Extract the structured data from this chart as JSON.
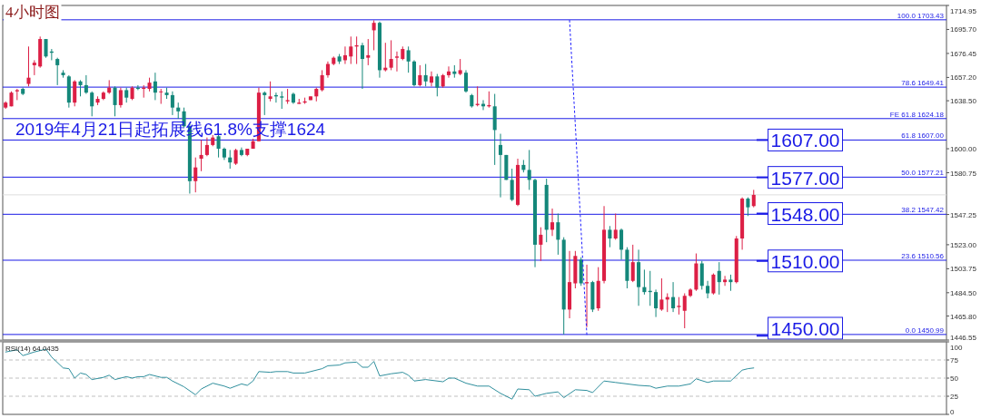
{
  "chart_data": [
    {
      "type": "candlestick",
      "title": "4小时图",
      "categories": [
        null,
        null,
        null,
        null,
        null,
        null,
        null,
        null,
        null,
        null,
        null,
        null,
        null,
        null,
        null,
        null,
        null,
        null,
        null,
        null,
        null,
        null,
        null,
        null,
        null,
        null,
        null,
        null,
        null,
        null,
        null,
        null,
        null,
        null,
        null,
        null,
        null,
        null,
        null,
        null,
        null,
        null,
        null,
        null,
        null,
        null,
        null,
        null,
        null,
        null,
        null,
        null,
        null,
        null,
        null,
        null,
        null,
        null,
        null,
        null,
        null,
        null,
        null,
        null,
        null,
        null,
        null,
        null,
        null,
        null,
        null,
        null,
        null,
        null,
        null,
        null,
        null,
        null,
        null,
        null,
        null,
        null,
        null,
        null,
        null,
        null,
        null,
        null,
        null,
        null,
        null,
        null,
        null,
        null,
        null,
        null,
        null,
        null,
        null,
        null,
        null,
        null,
        null,
        null,
        null,
        null,
        null,
        null,
        null,
        null,
        null,
        null,
        null,
        null,
        null,
        null,
        null,
        null,
        null,
        null,
        null,
        null,
        null,
        null,
        null,
        null,
        null,
        null,
        null,
        null,
        null,
        null,
        null,
        null,
        null,
        null,
        null,
        null,
        null,
        null,
        null,
        null,
        null,
        null,
        null,
        null,
        null,
        null,
        null,
        null,
        null,
        null,
        null,
        null,
        null,
        null,
        null,
        null,
        null,
        null,
        null,
        null,
        null,
        null
      ],
      "ohlc": [
        [
          1633,
          1638,
          1632,
          1637
        ],
        [
          1634,
          1646,
          1634,
          1645
        ],
        [
          1646,
          1648,
          1639,
          1647
        ],
        [
          1648,
          1649,
          1643,
          1644
        ],
        [
          1652,
          1682,
          1650,
          1657
        ],
        [
          1667,
          1671,
          1659,
          1669
        ],
        [
          1666,
          1690,
          1665,
          1688
        ],
        [
          1688,
          1688,
          1673,
          1674
        ],
        [
          1678,
          1680,
          1671,
          1677
        ],
        [
          1672,
          1673,
          1651,
          1667
        ],
        [
          1661,
          1663,
          1657,
          1659
        ],
        [
          1658,
          1659,
          1633,
          1637
        ],
        [
          1637,
          1655,
          1634,
          1654
        ],
        [
          1654,
          1655,
          1642,
          1651
        ],
        [
          1651,
          1659,
          1644,
          1645
        ],
        [
          1645,
          1646,
          1626,
          1634
        ],
        [
          1637,
          1642,
          1635,
          1640
        ],
        [
          1640,
          1646,
          1639,
          1645
        ],
        [
          1645,
          1655,
          1644,
          1649
        ],
        [
          1649,
          1650,
          1626,
          1635
        ],
        [
          1635,
          1649,
          1633,
          1647
        ],
        [
          1647,
          1649,
          1637,
          1641
        ],
        [
          1640,
          1650,
          1639,
          1649
        ],
        [
          1649,
          1651,
          1647,
          1648
        ],
        [
          1648,
          1651,
          1641,
          1649
        ],
        [
          1648,
          1657,
          1646,
          1653
        ],
        [
          1654,
          1661,
          1639,
          1645
        ],
        [
          1646,
          1648,
          1636,
          1646
        ],
        [
          1645,
          1649,
          1640,
          1643
        ],
        [
          1643,
          1646,
          1627,
          1633
        ],
        [
          1633,
          1637,
          1624,
          1630
        ],
        [
          1630,
          1633,
          1617,
          1618
        ],
        [
          1618,
          1620,
          1564,
          1574
        ],
        [
          1574,
          1593,
          1565,
          1585
        ],
        [
          1592,
          1607,
          1582,
          1595
        ],
        [
          1595,
          1609,
          1594,
          1603
        ],
        [
          1603,
          1611,
          1602,
          1609
        ],
        [
          1610,
          1612,
          1593,
          1600
        ],
        [
          1600,
          1601,
          1591,
          1593
        ],
        [
          1593,
          1599,
          1584,
          1589
        ],
        [
          1588,
          1600,
          1587,
          1599
        ],
        [
          1599,
          1601,
          1594,
          1595
        ],
        [
          1595,
          1600,
          1594,
          1600
        ],
        [
          1600,
          1608,
          1600,
          1606
        ],
        [
          1606,
          1649,
          1606,
          1645
        ],
        [
          1645,
          1646,
          1627,
          1643
        ],
        [
          1640,
          1654,
          1638,
          1642
        ],
        [
          1643,
          1645,
          1637,
          1642
        ],
        [
          1642,
          1646,
          1632,
          1641
        ],
        [
          1638,
          1648,
          1636,
          1639
        ],
        [
          1644,
          1645,
          1636,
          1637
        ],
        [
          1636,
          1640,
          1636,
          1637
        ],
        [
          1637,
          1641,
          1636,
          1638
        ],
        [
          1639,
          1642,
          1639,
          1642
        ],
        [
          1642,
          1649,
          1638,
          1648
        ],
        [
          1647,
          1663,
          1646,
          1659
        ],
        [
          1659,
          1670,
          1657,
          1668
        ],
        [
          1668,
          1674,
          1667,
          1673
        ],
        [
          1674,
          1676,
          1668,
          1670
        ],
        [
          1671,
          1682,
          1668,
          1675
        ],
        [
          1674,
          1690,
          1668,
          1682
        ],
        [
          1682,
          1690,
          1668,
          1683
        ],
        [
          1683,
          1685,
          1648,
          1672
        ],
        [
          1673,
          1688,
          1667,
          1675
        ],
        [
          1695,
          1703,
          1679,
          1701
        ],
        [
          1701,
          1702,
          1657,
          1663
        ],
        [
          1663,
          1685,
          1662,
          1665
        ],
        [
          1665,
          1687,
          1663,
          1672
        ],
        [
          1673,
          1678,
          1662,
          1674
        ],
        [
          1672,
          1682,
          1671,
          1680
        ],
        [
          1679,
          1682,
          1661,
          1670
        ],
        [
          1670,
          1671,
          1650,
          1651
        ],
        [
          1651,
          1667,
          1650,
          1659
        ],
        [
          1659,
          1668,
          1650,
          1654
        ],
        [
          1653,
          1662,
          1650,
          1658
        ],
        [
          1658,
          1660,
          1642,
          1649
        ],
        [
          1650,
          1660,
          1649,
          1659
        ],
        [
          1659,
          1666,
          1657,
          1662
        ],
        [
          1662,
          1667,
          1657,
          1660
        ],
        [
          1660,
          1672,
          1659,
          1663
        ],
        [
          1661,
          1663,
          1645,
          1646
        ],
        [
          1643,
          1644,
          1633,
          1634
        ],
        [
          1635,
          1650,
          1634,
          1636
        ],
        [
          1636,
          1639,
          1631,
          1634
        ],
        [
          1634,
          1646,
          1633,
          1635
        ],
        [
          1634,
          1644,
          1587,
          1615
        ],
        [
          1603,
          1612,
          1561,
          1595
        ],
        [
          1595,
          1595,
          1575,
          1575
        ],
        [
          1575,
          1584,
          1558,
          1559
        ],
        [
          1555,
          1592,
          1554,
          1587
        ],
        [
          1587,
          1591,
          1581,
          1583
        ],
        [
          1583,
          1599,
          1567,
          1575
        ],
        [
          1575,
          1576,
          1505,
          1523
        ],
        [
          1523,
          1537,
          1510,
          1531
        ],
        [
          1571,
          1576,
          1525,
          1535
        ],
        [
          1535,
          1552,
          1530,
          1541
        ],
        [
          1541,
          1548,
          1515,
          1527
        ],
        [
          1527,
          1529,
          1451,
          1471
        ],
        [
          1471,
          1518,
          1464,
          1493
        ],
        [
          1492,
          1518,
          1488,
          1514
        ],
        [
          1511,
          1513,
          1490,
          1492
        ],
        [
          1492,
          1507,
          1457,
          1493
        ],
        [
          1493,
          1494,
          1469,
          1471
        ],
        [
          1472,
          1505,
          1470,
          1494
        ],
        [
          1494,
          1554,
          1492,
          1535
        ],
        [
          1535,
          1538,
          1521,
          1528
        ],
        [
          1528,
          1548,
          1527,
          1535
        ],
        [
          1535,
          1536,
          1511,
          1519
        ],
        [
          1519,
          1521,
          1488,
          1494
        ],
        [
          1494,
          1523,
          1493,
          1509
        ],
        [
          1509,
          1519,
          1474,
          1489
        ],
        [
          1489,
          1503,
          1483,
          1485
        ],
        [
          1486,
          1502,
          1474,
          1485
        ],
        [
          1485,
          1487,
          1465,
          1472
        ],
        [
          1471,
          1496,
          1470,
          1479
        ],
        [
          1479,
          1484,
          1469,
          1481
        ],
        [
          1481,
          1493,
          1469,
          1472
        ],
        [
          1473,
          1481,
          1467,
          1474
        ],
        [
          1470,
          1484,
          1456,
          1482
        ],
        [
          1482,
          1488,
          1481,
          1487
        ],
        [
          1487,
          1516,
          1486,
          1508
        ],
        [
          1508,
          1510,
          1487,
          1490
        ],
        [
          1490,
          1494,
          1480,
          1484
        ],
        [
          1484,
          1500,
          1483,
          1499
        ],
        [
          1502,
          1509,
          1483,
          1493
        ],
        [
          1493,
          1498,
          1490,
          1495
        ],
        [
          1495,
          1499,
          1486,
          1493
        ],
        [
          1493,
          1530,
          1492,
          1528
        ],
        [
          1528,
          1561,
          1519,
          1560
        ],
        [
          1560,
          1561,
          1546,
          1553
        ],
        [
          1554,
          1567,
          1553,
          1563
        ],
        null,
        null,
        null,
        null,
        null,
        null,
        null,
        null,
        null,
        null,
        null,
        null,
        null,
        null,
        null,
        null,
        null,
        null,
        null,
        null,
        null,
        null,
        null,
        null,
        null,
        null,
        null,
        null,
        null,
        null,
        null,
        null,
        null
      ],
      "series": [
        {
          "type": "line",
          "color": "#2020ff",
          "line_style": "dotted",
          "values": [
            null,
            null,
            null,
            null,
            null,
            null,
            null,
            null,
            null,
            null,
            null,
            null,
            null,
            null,
            null,
            null,
            null,
            null,
            null,
            null,
            null,
            null,
            null,
            null,
            null,
            null,
            null,
            null,
            null,
            null,
            null,
            null,
            null,
            null,
            null,
            null,
            null,
            null,
            null,
            null,
            null,
            null,
            null,
            null,
            null,
            null,
            null,
            null,
            null,
            null,
            null,
            null,
            null,
            null,
            null,
            null,
            null,
            null,
            null,
            null,
            null,
            null,
            null,
            null,
            null,
            null,
            null,
            null,
            null,
            null,
            null,
            null,
            null,
            null,
            null,
            null,
            null,
            null,
            null,
            null,
            null,
            null,
            null,
            null,
            null,
            null,
            null,
            null,
            null,
            null,
            null,
            null,
            null,
            null,
            null,
            null,
            null,
            null,
            1703,
            null,
            null,
            1451,
            null,
            null,
            null,
            null,
            null,
            null,
            null,
            null,
            null,
            null,
            null,
            null,
            null,
            null,
            null,
            null,
            null,
            null,
            null,
            null,
            null,
            null,
            null,
            null,
            null,
            null,
            null,
            null,
            null,
            null,
            null,
            null,
            null,
            null,
            null,
            null,
            null,
            null,
            null,
            null,
            null,
            null,
            null,
            null,
            null,
            null,
            null,
            null,
            null,
            null,
            null,
            null,
            null,
            null,
            null,
            null,
            null,
            null,
            null,
            null,
            null,
            null
          ]
        }
      ],
      "ylim": [
        1446.55,
        1714.95
      ],
      "yticks": [
        1714.95,
        {
          "value": 1695.7,
          "label": "1695.70"
        },
        1676.45,
        {
          "value": 1657.2,
          "label": "1657.20"
        },
        {
          "value": 1638.5,
          "label": "1638.50"
        },
        {
          "value": 1600,
          "label": "1600.00"
        },
        1580.75,
        1547.25,
        {
          "value": 1523,
          "label": "1523.00"
        },
        1503.75,
        {
          "value": 1484.5,
          "label": "1484.50"
        },
        {
          "value": 1465.8,
          "label": "1465.80"
        },
        1446.55
      ],
      "ref_lines": [
        {
          "axis": "y",
          "value": 1703.43,
          "label": "100.0  1703.43",
          "color": "#1a1ae6"
        },
        {
          "axis": "y",
          "value": 1649.41,
          "label": "78.6  1649.41",
          "color": "#1a1ae6"
        },
        {
          "axis": "y",
          "value": 1624.18,
          "label": "FE 61.8  1624.18",
          "color": "#1a1ae6"
        },
        {
          "axis": "y",
          "value": 1607.0,
          "label": "61.8  1607.00",
          "color": "#1a1ae6"
        },
        {
          "axis": "y",
          "value": 1577.21,
          "label": "50.0  1577.21",
          "color": "#1a1ae6"
        },
        {
          "axis": "y",
          "value": 1563,
          "color": "#dddddd"
        },
        {
          "axis": "y",
          "value": 1547.42,
          "label": "38.2  1547.42",
          "color": "#1a1ae6"
        },
        {
          "axis": "y",
          "value": 1510.56,
          "label": "23.6  1510.56",
          "color": "#1a1ae6"
        },
        {
          "axis": "y",
          "value": 1450.99,
          "label": "0.0  1450.99",
          "color": "#1a1ae6"
        }
      ],
      "annotations": [
        "2019年4月21日起拓展线61.8%支撑1624",
        {
          "text": "1607.00",
          "y": 1607
        },
        {
          "text": "1577.00",
          "y": 1577
        },
        {
          "text": "1548.00",
          "y": 1548
        },
        {
          "text": "1510.00",
          "y": 1510
        },
        {
          "text": "1450.00",
          "y": 1450
        }
      ],
      "tick_labels": "y"
    },
    {
      "type": "line",
      "title": "RSI(14) 64.0435",
      "categories": [
        null,
        null,
        null,
        null,
        null,
        null,
        null,
        null,
        null,
        null,
        null,
        null,
        null,
        null,
        null,
        null,
        null,
        null,
        null,
        null,
        null,
        null,
        null,
        null,
        null,
        null,
        null,
        null,
        null,
        null,
        null,
        null,
        null,
        null,
        null,
        null,
        null,
        null,
        null,
        null,
        null,
        null,
        null,
        null,
        null,
        null,
        null,
        null,
        null,
        null,
        null,
        null,
        null,
        null,
        null,
        null,
        null,
        null,
        null,
        null,
        null,
        null,
        null,
        null,
        null,
        null,
        null,
        null,
        null,
        null,
        null,
        null,
        null,
        null,
        null,
        null,
        null,
        null,
        null,
        null,
        null,
        null,
        null,
        null,
        null,
        null,
        null,
        null,
        null,
        null,
        null,
        null,
        null,
        null,
        null,
        null,
        null,
        null,
        null,
        null,
        null,
        null,
        null,
        null,
        null,
        null,
        null,
        null,
        null,
        null,
        null,
        null,
        null,
        null,
        null,
        null,
        null,
        null,
        null,
        null,
        null,
        null,
        null,
        null,
        null,
        null,
        null,
        null,
        null,
        null,
        null,
        null,
        null,
        null,
        null,
        null,
        null,
        null,
        null,
        null,
        null,
        null,
        null,
        null,
        null,
        null,
        null,
        null,
        null,
        null,
        null,
        null,
        null,
        null,
        null,
        null,
        null,
        null,
        null,
        null,
        null,
        null,
        null,
        null
      ],
      "series": [
        {
          "color": "#2f8f9d",
          "values": [
            86,
            null,
            89,
            81,
            null,
            86,
            null,
            90,
            79,
            null,
            64,
            63,
            50,
            57,
            55,
            48,
            null,
            51,
            54,
            48,
            null,
            52,
            50,
            52,
            52,
            55,
            null,
            51,
            51,
            46,
            null,
            38,
            null,
            27,
            35,
            null,
            43,
            null,
            39,
            36,
            null,
            42,
            40,
            46,
            59,
            null,
            58,
            59,
            null,
            59,
            57,
            null,
            57,
            59,
            null,
            63,
            67,
            null,
            68,
            71,
            null,
            72,
            65,
            65,
            73,
            53,
            null,
            56,
            null,
            58,
            54,
            46,
            null,
            48,
            47,
            null,
            45,
            50,
            50,
            null,
            43,
            null,
            39,
            null,
            39,
            null,
            29,
            null,
            21,
            35,
            null,
            34,
            25,
            null,
            29,
            null,
            31,
            23,
            null,
            34,
            null,
            33,
            30,
            null,
            46,
            null,
            44,
            43,
            null,
            null,
            40,
            null,
            39,
            36,
            null,
            39,
            null,
            39,
            null,
            42,
            49,
            null,
            44,
            46,
            null,
            46,
            46,
            null,
            61,
            63,
            64,
            null,
            null,
            null,
            null,
            null,
            null,
            null,
            null,
            null,
            null,
            null,
            null,
            null,
            null,
            null,
            null,
            null,
            null,
            null,
            null,
            null,
            null,
            null,
            null,
            null,
            null,
            null,
            null,
            null,
            null,
            null,
            null,
            null
          ]
        }
      ],
      "ylim": [
        0,
        100
      ],
      "yticks": [
        0,
        25,
        50,
        75,
        100
      ],
      "ref_lines": [
        {
          "axis": "y",
          "value": 75,
          "color": "#c0c0c0",
          "line_style": "dashed"
        },
        {
          "axis": "y",
          "value": 50,
          "color": "#c0c0c0",
          "line_style": "dashed"
        },
        {
          "axis": "y",
          "value": 25,
          "color": "#c0c0c0",
          "line_style": "dashed"
        }
      ],
      "tick_labels": "y"
    }
  ]
}
